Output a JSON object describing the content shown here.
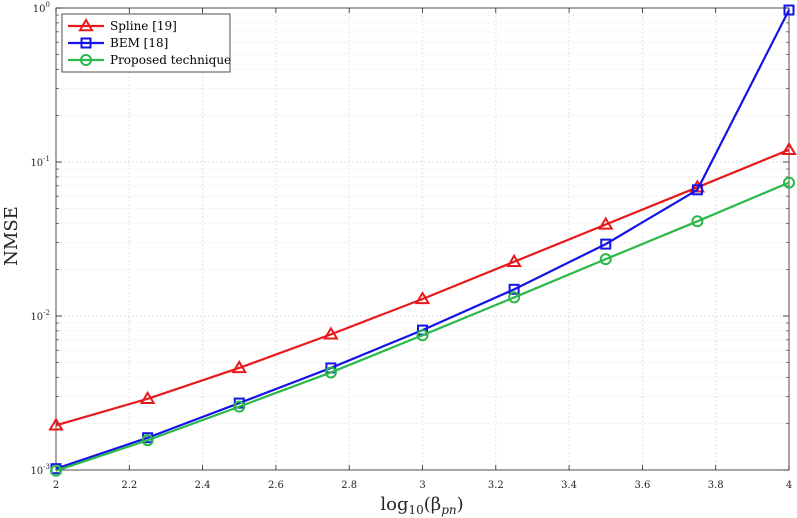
{
  "chart_data": {
    "type": "line",
    "title": "",
    "xlabel_base": "log",
    "xlabel_sub": "10",
    "xlabel_arg": "(β",
    "xlabel_arg_sub": "pn",
    "xlabel_close": ")",
    "ylabel": "NMSE",
    "x": [
      2,
      2.25,
      2.5,
      2.75,
      3,
      3.25,
      3.5,
      3.75,
      4
    ],
    "xlim": [
      2,
      4
    ],
    "ylim": [
      0.001,
      1
    ],
    "yscale": "log",
    "xticks": [
      2,
      2.2,
      2.4,
      2.6,
      2.8,
      3,
      3.2,
      3.4,
      3.6,
      3.8,
      4
    ],
    "xtick_labels": [
      "2",
      "2.2",
      "2.4",
      "2.6",
      "2.8",
      "3",
      "3.2",
      "3.4",
      "3.6",
      "3.8",
      "4"
    ],
    "yticks": [
      {
        "value": 0.001,
        "base": "10",
        "exp": "-3"
      },
      {
        "value": 0.01,
        "base": "10",
        "exp": "-2"
      },
      {
        "value": 0.1,
        "base": "10",
        "exp": "-1"
      },
      {
        "value": 1,
        "base": "10",
        "exp": "0"
      }
    ],
    "grid": true,
    "legend_position": "top-left",
    "series": [
      {
        "name": "Spline [19]",
        "color": "#e8191a",
        "marker": "triangle",
        "values": [
          0.00195,
          0.0029,
          0.0046,
          0.0076,
          0.0129,
          0.0225,
          0.0393,
          0.0685,
          0.12
        ]
      },
      {
        "name": "BEM [18]",
        "color": "#1414e6",
        "marker": "square",
        "values": [
          0.00102,
          0.00162,
          0.00272,
          0.0046,
          0.0081,
          0.0149,
          0.0293,
          0.066,
          0.97
        ]
      },
      {
        "name": "Proposed technique",
        "color": "#2ab84a",
        "marker": "circle",
        "values": [
          0.00099,
          0.00156,
          0.00258,
          0.0043,
          0.0075,
          0.0132,
          0.0234,
          0.0412,
          0.0735
        ]
      }
    ]
  }
}
